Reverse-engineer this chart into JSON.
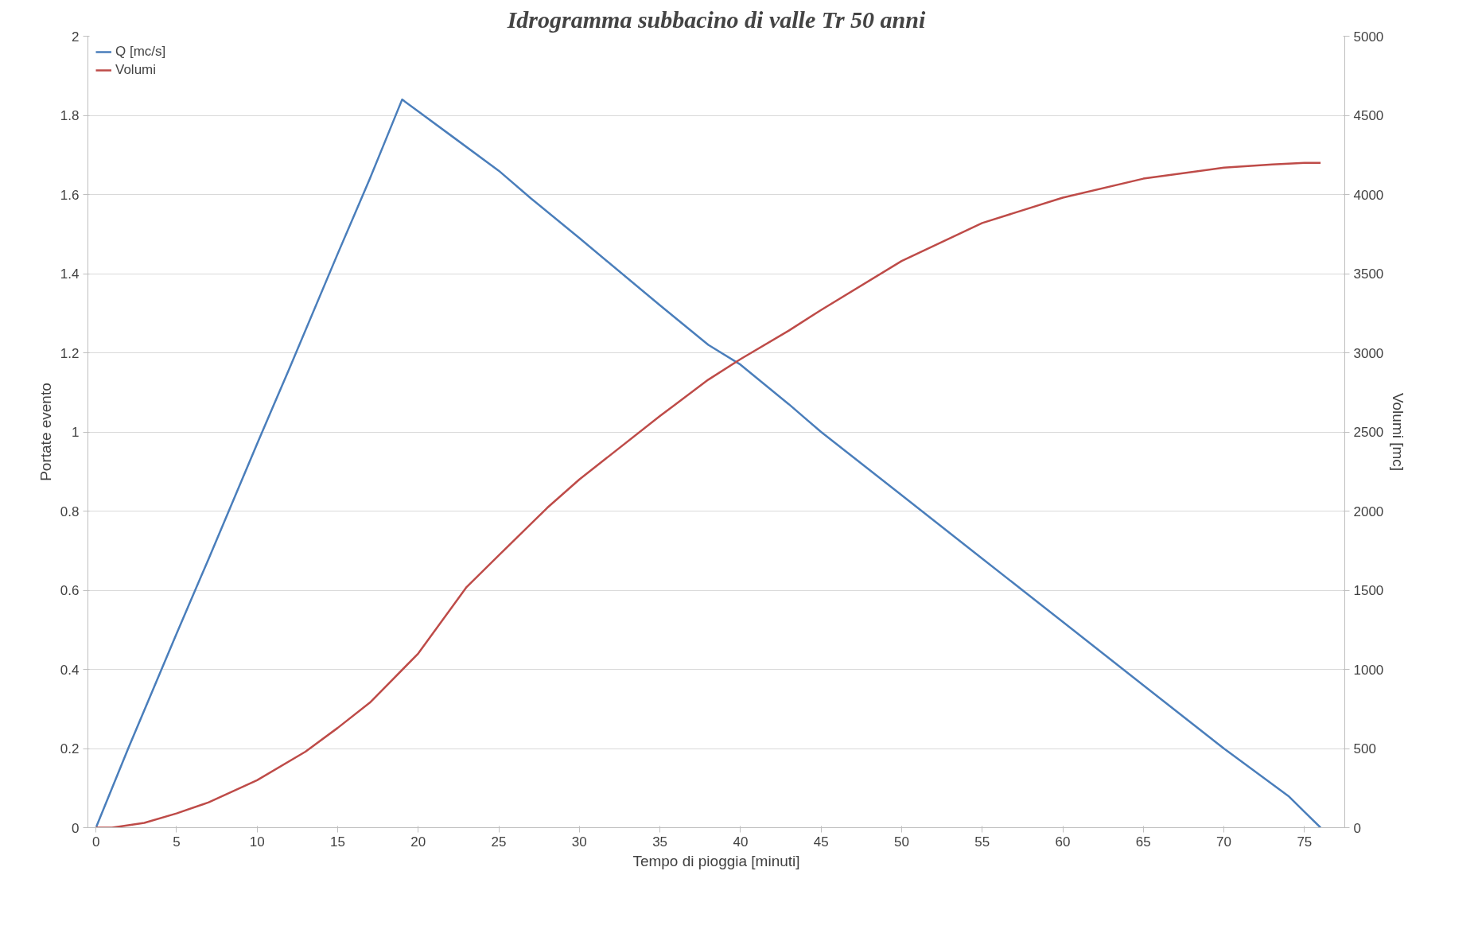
{
  "chart_data": {
    "type": "line",
    "title": "Idrogramma subbacino di valle Tr 50 anni",
    "xlabel": "Tempo di pioggia [minuti]",
    "ylabel": "Portate evento",
    "y2label": "Volumi [mc]",
    "series": [
      {
        "name": "Q [mc/s]",
        "color": "#4a7ebb",
        "x": [
          0,
          1,
          2,
          5,
          7,
          10,
          12,
          15,
          17,
          18,
          19,
          20,
          22,
          25,
          27,
          30,
          35,
          38,
          40,
          43,
          45,
          50,
          55,
          60,
          65,
          70,
          74,
          75,
          76
        ],
        "values": [
          0,
          0.1,
          0.2,
          0.49,
          0.68,
          0.97,
          1.16,
          1.45,
          1.64,
          1.74,
          1.84,
          1.81,
          1.75,
          1.66,
          1.59,
          1.49,
          1.32,
          1.22,
          1.17,
          1.07,
          1.0,
          0.84,
          0.68,
          0.52,
          0.36,
          0.2,
          0.08,
          0.04,
          0
        ]
      },
      {
        "name": "Volumi",
        "color": "#be4b48",
        "axis": "y2",
        "x": [
          0,
          1,
          3,
          5,
          7,
          10,
          13,
          15,
          17,
          20,
          23,
          25,
          28,
          30,
          35,
          38,
          40,
          43,
          45,
          50,
          55,
          60,
          65,
          70,
          73,
          75,
          76
        ],
        "values": [
          0,
          0,
          30,
          90,
          160,
          300,
          480,
          630,
          790,
          1100,
          1520,
          1720,
          2020,
          2200,
          2600,
          2830,
          2960,
          3140,
          3270,
          3580,
          3820,
          3980,
          4100,
          4170,
          4190,
          4200,
          4200
        ]
      }
    ],
    "xlim": [
      -0.5,
      77.5
    ],
    "xticks": [
      0,
      5,
      10,
      15,
      20,
      25,
      30,
      35,
      40,
      45,
      50,
      55,
      60,
      65,
      70,
      75
    ],
    "ylim": [
      0,
      2
    ],
    "yticks": [
      0,
      0.2,
      0.4,
      0.6,
      0.8,
      1,
      1.2,
      1.4,
      1.6,
      1.8,
      2
    ],
    "y2lim": [
      0,
      5000
    ],
    "y2ticks": [
      0,
      500,
      1000,
      1500,
      2000,
      2500,
      3000,
      3500,
      4000,
      4500,
      5000
    ],
    "grid": "y",
    "legend": "top left",
    "marker": "none",
    "line_style": "solid"
  }
}
